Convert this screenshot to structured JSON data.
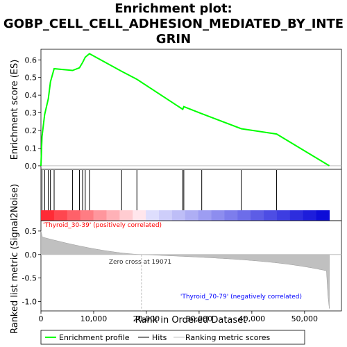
{
  "chart_data": {
    "type": "line",
    "title_line1": "Enrichment plot:",
    "title_line2": "GOBP_CELL_CELL_ADHESION_MEDIATED_BY_INTE",
    "title_line3": "GRIN",
    "ylabel_top": "Enrichment score (ES)",
    "ylabel_bottom": "Ranked list metric (Signal2Noise)",
    "xlabel": "Rank in Ordered Dataset",
    "x_range": [
      0,
      57000
    ],
    "x_ticks": [
      0,
      10000,
      20000,
      30000,
      40000,
      50000
    ],
    "x_tick_labels": [
      "0",
      "10,000",
      "20,000",
      "30,000",
      "40,000",
      "50,000"
    ],
    "es_ylim": [
      -0.02,
      0.66
    ],
    "es_ticks": [
      0.0,
      0.1,
      0.2,
      0.3,
      0.4,
      0.5,
      0.6
    ],
    "es_tick_labels": [
      "0.0",
      "0.1",
      "0.2",
      "0.3",
      "0.4",
      "0.5",
      "0.6"
    ],
    "metric_ylim": [
      -1.2,
      0.72
    ],
    "metric_ticks": [
      0.5,
      0.0,
      -0.5,
      -1.0
    ],
    "metric_tick_labels": [
      "0.5",
      "0.0",
      "-0.5",
      "-1.0"
    ],
    "total_ranks": 54700,
    "zero_cross": 19071,
    "zero_cross_label": "Zero cross at 19071",
    "positive_label": "'Thyroid_30-39' (positively correlated)",
    "negative_label": "'Thyroid_70-79' (negatively correlated)",
    "hits": [
      200,
      700,
      1400,
      1800,
      2500,
      6000,
      7300,
      7900,
      8400,
      9200,
      15300,
      18200,
      26900,
      27100,
      30500,
      38000,
      44700
    ],
    "es_profile": {
      "x": [
        0,
        200,
        700,
        1400,
        1800,
        2500,
        6000,
        7300,
        7900,
        8400,
        9200,
        15300,
        18200,
        26900,
        27100,
        30500,
        38000,
        44700,
        54700
      ],
      "y": [
        0.0,
        0.165,
        0.29,
        0.38,
        0.475,
        0.55,
        0.54,
        0.555,
        0.585,
        0.615,
        0.635,
        0.535,
        0.49,
        0.32,
        0.335,
        0.295,
        0.21,
        0.18,
        0.0
      ]
    },
    "legend": [
      "Enrichment profile",
      "Hits",
      "Ranking metric scores"
    ],
    "colors": {
      "es_line": "#00ff00",
      "hits": "#000000",
      "metric_fill": "#c0c0c0",
      "zero_line": "#c0c0c0",
      "positive_text": "#ff0000",
      "negative_text": "#0000ff"
    }
  }
}
